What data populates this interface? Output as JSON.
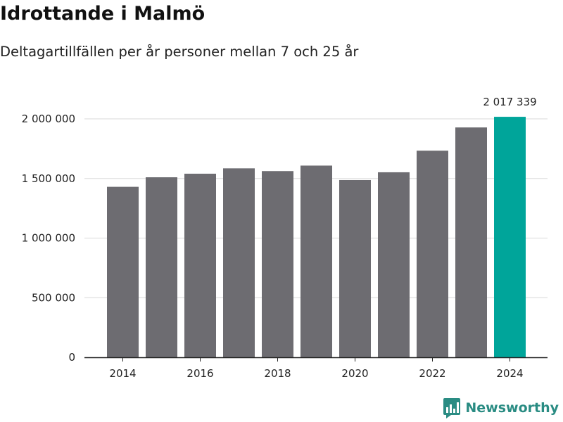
{
  "title": "Idrottande i Malmö",
  "subtitle": "Deltagartillfällen per år personer mellan 7 och 25 år",
  "brand": {
    "name": "Newsworthy",
    "icon": "bar-chart-bubble-icon",
    "color": "#2a8c83"
  },
  "colors": {
    "bar": "#6d6c71",
    "highlight": "#00a59a",
    "grid": "#d9d9d9",
    "axis": "#222222"
  },
  "chart_data": {
    "type": "bar",
    "title": "Idrottande i Malmö",
    "subtitle": "Deltagartillfällen per år personer mellan 7 och 25 år",
    "xlabel": "",
    "ylabel": "",
    "categories": [
      "2014",
      "2015",
      "2016",
      "2017",
      "2018",
      "2019",
      "2020",
      "2021",
      "2022",
      "2023",
      "2024"
    ],
    "values": [
      1430000,
      1510000,
      1540000,
      1585000,
      1562000,
      1608000,
      1487000,
      1552000,
      1733000,
      1928000,
      2017339
    ],
    "highlight_index": 10,
    "highlight_label": "2 017 339",
    "ylim": [
      0,
      2000000
    ],
    "yticks": [
      0,
      500000,
      1000000,
      1500000,
      2000000
    ],
    "ytick_labels": [
      "0",
      "500 000",
      "1 000 000",
      "1 500 000",
      "2 000 000"
    ],
    "xtick_labels": [
      "2014",
      "2016",
      "2018",
      "2020",
      "2022",
      "2024"
    ],
    "grid": true,
    "legend": "none"
  }
}
